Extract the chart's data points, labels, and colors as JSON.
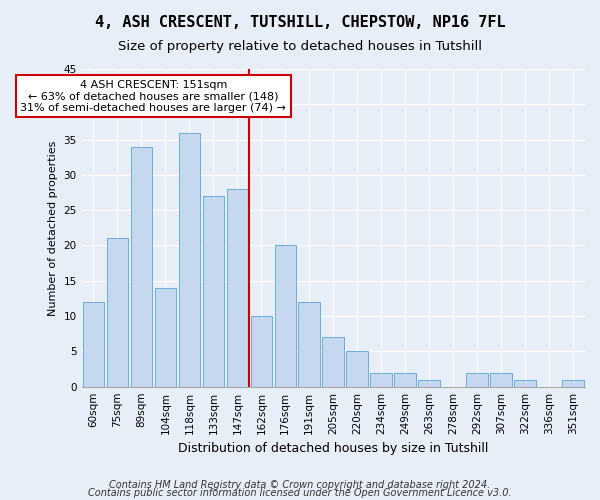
{
  "title": "4, ASH CRESCENT, TUTSHILL, CHEPSTOW, NP16 7FL",
  "subtitle": "Size of property relative to detached houses in Tutshill",
  "xlabel": "Distribution of detached houses by size in Tutshill",
  "ylabel": "Number of detached properties",
  "categories": [
    "60sqm",
    "75sqm",
    "89sqm",
    "104sqm",
    "118sqm",
    "133sqm",
    "147sqm",
    "162sqm",
    "176sqm",
    "191sqm",
    "205sqm",
    "220sqm",
    "234sqm",
    "249sqm",
    "263sqm",
    "278sqm",
    "292sqm",
    "307sqm",
    "322sqm",
    "336sqm",
    "351sqm"
  ],
  "values": [
    12,
    21,
    34,
    14,
    36,
    27,
    28,
    10,
    20,
    12,
    7,
    5,
    2,
    2,
    1,
    0,
    2,
    2,
    1,
    0,
    1
  ],
  "bar_color": "#c5d8f0",
  "bar_edge_color": "#6aaed6",
  "highlight_line_color": "#cc0000",
  "highlight_index": 6,
  "annotation_text": "4 ASH CRESCENT: 151sqm\n← 63% of detached houses are smaller (148)\n31% of semi-detached houses are larger (74) →",
  "annotation_box_color": "#ffffff",
  "annotation_box_edge": "#cc0000",
  "ylim": [
    0,
    45
  ],
  "yticks": [
    0,
    5,
    10,
    15,
    20,
    25,
    30,
    35,
    40,
    45
  ],
  "footer_line1": "Contains HM Land Registry data © Crown copyright and database right 2024.",
  "footer_line2": "Contains public sector information licensed under the Open Government Licence v3.0.",
  "bg_color": "#e8eef8",
  "plot_bg_color": "#e8eef8",
  "title_fontsize": 11,
  "subtitle_fontsize": 9.5,
  "xlabel_fontsize": 9,
  "ylabel_fontsize": 8,
  "tick_fontsize": 7.5,
  "footer_fontsize": 7,
  "annotation_fontsize": 8
}
